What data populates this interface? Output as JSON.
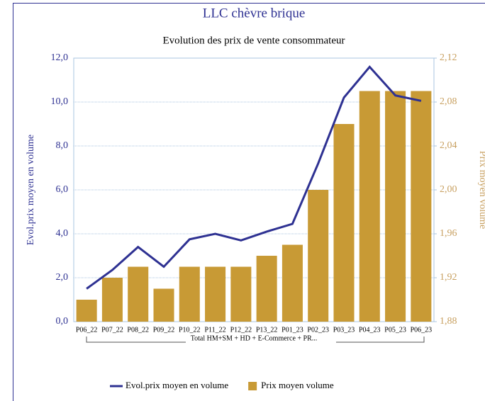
{
  "chart_data": {
    "type": "bar_line",
    "title": "LLC chèvre brique",
    "subtitle": "Evolution des prix de vente consommateur",
    "y_label": "Evol.prix moyen en volume",
    "y2_label": "Prix moyen volume",
    "category_group": "Total HM+SM + HD + E-Commerce + PR...",
    "categories": [
      "P06_22",
      "P07_22",
      "P08_22",
      "P09_22",
      "P10_22",
      "P11_22",
      "P12_22",
      "P13_22",
      "P01_23",
      "P02_23",
      "P03_23",
      "P04_23",
      "P05_23",
      "P06_23"
    ],
    "series": [
      {
        "name": "Evol.prix moyen en volume",
        "type": "line",
        "color": "#2e3192",
        "axis": "y",
        "values": [
          1.5,
          2.35,
          3.4,
          2.5,
          3.75,
          4.0,
          3.7,
          4.1,
          4.45,
          7.2,
          10.2,
          11.6,
          10.3,
          10.05
        ]
      },
      {
        "name": "Prix moyen volume",
        "type": "bar",
        "color": "#c89a35",
        "axis": "y2",
        "values": [
          1.9,
          1.92,
          1.93,
          1.91,
          1.93,
          1.93,
          1.93,
          1.94,
          1.95,
          2.0,
          2.06,
          2.09,
          2.09,
          2.09
        ]
      }
    ],
    "ylim": [
      0,
      12
    ],
    "yticks": [
      {
        "value": 0,
        "label": "0,0"
      },
      {
        "value": 2,
        "label": "2,0"
      },
      {
        "value": 4,
        "label": "4,0"
      },
      {
        "value": 6,
        "label": "6,0"
      },
      {
        "value": 8,
        "label": "8,0"
      },
      {
        "value": 10,
        "label": "10,0"
      },
      {
        "value": 12,
        "label": "12,0"
      }
    ],
    "y2lim": [
      1.88,
      2.12
    ],
    "y2ticks": [
      {
        "value": 1.88,
        "label": "1,88"
      },
      {
        "value": 1.92,
        "label": "1,92"
      },
      {
        "value": 1.96,
        "label": "1,96"
      },
      {
        "value": 2.0,
        "label": "2,00"
      },
      {
        "value": 2.04,
        "label": "2,04"
      },
      {
        "value": 2.08,
        "label": "2,08"
      },
      {
        "value": 2.12,
        "label": "2,12"
      }
    ],
    "grid": true,
    "legend": "bottom"
  }
}
